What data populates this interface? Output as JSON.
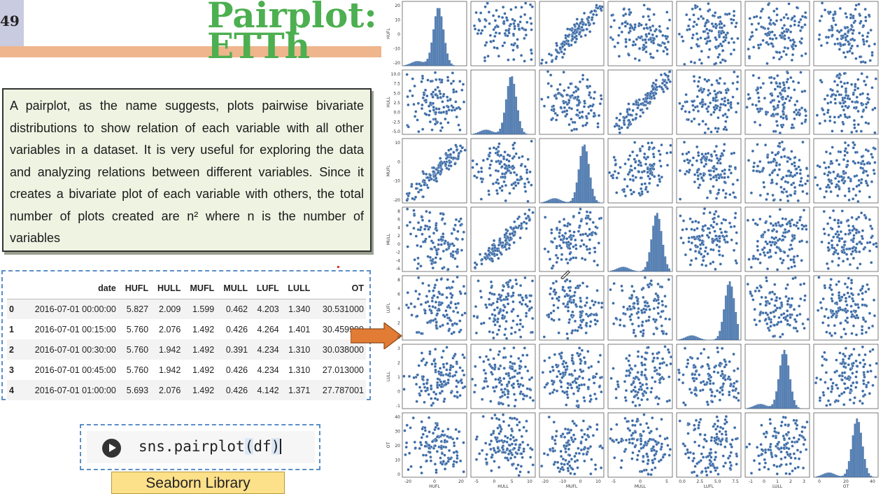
{
  "slide": {
    "number": "49",
    "title": "Pairplot: ETTh",
    "description": "A pairplot, as the name suggests, plots pairwise bivariate distributions to show relation of each variable with all other variables in a dataset. It is very useful for exploring the data and analyzing relations between different variables. Since it creates a bivariate plot of each variable with others, the total number of plots created are n² where n is the number of variables",
    "library_label": "Seaborn Library"
  },
  "dataframe": {
    "columns": [
      "",
      "date",
      "HUFL",
      "HULL",
      "MUFL",
      "MULL",
      "LUFL",
      "LULL",
      "OT"
    ],
    "rows": [
      [
        "0",
        "2016-07-01 00:00:00",
        "5.827",
        "2.009",
        "1.599",
        "0.462",
        "4.203",
        "1.340",
        "30.531000"
      ],
      [
        "1",
        "2016-07-01 00:15:00",
        "5.760",
        "2.076",
        "1.492",
        "0.426",
        "4.264",
        "1.401",
        "30.459999"
      ],
      [
        "2",
        "2016-07-01 00:30:00",
        "5.760",
        "1.942",
        "1.492",
        "0.391",
        "4.234",
        "1.310",
        "30.038000"
      ],
      [
        "3",
        "2016-07-01 00:45:00",
        "5.760",
        "1.942",
        "1.492",
        "0.426",
        "4.234",
        "1.310",
        "27.013000"
      ],
      [
        "4",
        "2016-07-01 01:00:00",
        "5.693",
        "2.076",
        "1.492",
        "0.426",
        "4.142",
        "1.371",
        "27.787001"
      ]
    ]
  },
  "code_cell": {
    "prefix": "sns.pairplot",
    "open_paren": "(",
    "arg": "df",
    "close_paren": ")"
  },
  "colors": {
    "title": "#4caf50",
    "band": "#efb58d",
    "point": "#3a6aa6",
    "arrow": "#e27b34"
  },
  "chart_data": {
    "type": "scatter",
    "title": "",
    "variables": [
      "HUFL",
      "HULL",
      "MUFL",
      "MULL",
      "LUFL",
      "LULL",
      "OT"
    ],
    "axis_ranges": {
      "HUFL": [
        -23,
        24
      ],
      "HULL": [
        -5,
        10.5
      ],
      "MUFL": [
        -25,
        20
      ],
      "MULL": [
        -6,
        8.5
      ],
      "LUFL": [
        -0.3,
        8.8
      ],
      "LULL": [
        -1.5,
        3.4
      ],
      "OT": [
        -6,
        48
      ]
    },
    "y_ticks": {
      "HUFL": [
        "20",
        "10",
        "0",
        "-10",
        "-20"
      ],
      "HULL": [
        "10.0",
        "7.5",
        "5.0",
        "2.5",
        "0.0",
        "-2.5",
        "-5.0"
      ],
      "MUFL": [
        "10",
        "0",
        "-10",
        "-20"
      ],
      "MULL": [
        "8",
        "6",
        "4",
        "2",
        "0",
        "-2",
        "-4",
        "-6"
      ],
      "LUFL": [
        "8",
        "6",
        "4",
        "2",
        "0"
      ],
      "LULL": [
        "3",
        "2",
        "1",
        "0",
        "-1"
      ],
      "OT": [
        "40",
        "30",
        "20",
        "10",
        "0"
      ]
    },
    "x_ticks": {
      "HUFL": [
        "-20",
        "0",
        "20"
      ],
      "HULL": [
        "-5",
        "0",
        "5",
        "10"
      ],
      "MUFL": [
        "-20",
        "-10",
        "0",
        "10"
      ],
      "MULL": [
        "-5",
        "0",
        "5"
      ],
      "LUFL": [
        "0.0",
        "2.5",
        "5.0",
        "7.5"
      ],
      "LULL": [
        "-1",
        "0",
        "1",
        "2",
        "3"
      ],
      "OT": [
        "0",
        "20",
        "40"
      ]
    },
    "diagonal": "histogram",
    "off_diagonal": "scatter"
  }
}
